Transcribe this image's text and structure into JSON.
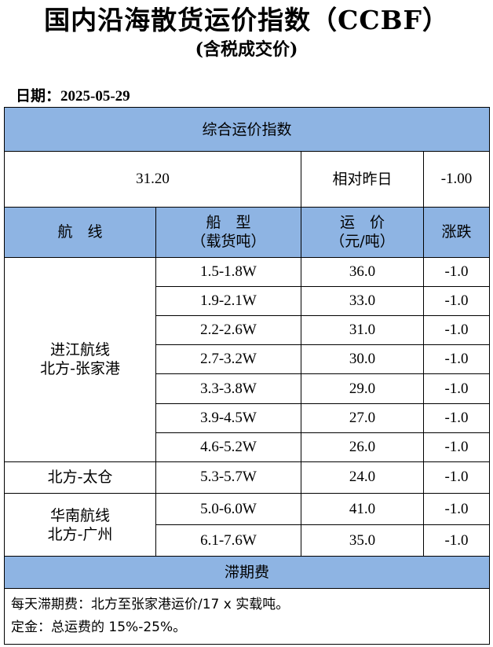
{
  "title": "国内沿海散货运价指数（CCBF）",
  "subtitle": "(含税成交价)",
  "date": {
    "label": "日期：",
    "value": "2025-05-29"
  },
  "index_header": "综合运价指数",
  "index": {
    "value": "31.20",
    "compare_label": "相对昨日",
    "change": "-1.00"
  },
  "columns": {
    "route": "航　线",
    "ship_type_line1": "船　型",
    "ship_type_line2": "（载货吨）",
    "rate_line1": "运　价",
    "rate_line2": "（元/吨）",
    "change": "涨跌"
  },
  "groups": [
    {
      "route_line1": "进江航线",
      "route_line2": "北方-张家港",
      "rows": [
        {
          "ship": "1.5-1.8W",
          "rate": "36.0",
          "change": "-1.0"
        },
        {
          "ship": "1.9-2.1W",
          "rate": "33.0",
          "change": "-1.0"
        },
        {
          "ship": "2.2-2.6W",
          "rate": "31.0",
          "change": "-1.0"
        },
        {
          "ship": "2.7-3.2W",
          "rate": "30.0",
          "change": "-1.0"
        },
        {
          "ship": "3.3-3.8W",
          "rate": "29.0",
          "change": "-1.0"
        },
        {
          "ship": "3.9-4.5W",
          "rate": "27.0",
          "change": "-1.0"
        },
        {
          "ship": "4.6-5.2W",
          "rate": "26.0",
          "change": "-1.0"
        }
      ]
    },
    {
      "route_line1": "北方-太仓",
      "route_line2": "",
      "rows": [
        {
          "ship": "5.3-5.7W",
          "rate": "24.0",
          "change": "-1.0"
        }
      ]
    },
    {
      "route_line1": "华南航线",
      "route_line2": "北方-广州",
      "rows": [
        {
          "ship": "5.0-6.0W",
          "rate": "41.0",
          "change": "-1.0"
        },
        {
          "ship": "6.1-7.6W",
          "rate": "35.0",
          "change": "-1.0"
        }
      ]
    }
  ],
  "demurrage": {
    "header": "滞期费",
    "line1": "每天滞期费：北方至张家港运价/17 x 实载吨。",
    "line2": "定金：总运费的 15%-25%。"
  }
}
